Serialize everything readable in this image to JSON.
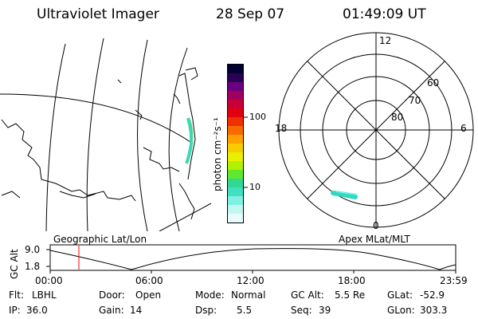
{
  "header": {
    "instrument": "Ultraviolet Imager",
    "date": "28 Sep 07",
    "time": "01:49:09 UT"
  },
  "colorbar": {
    "unit_label": "photon cm⁻²s⁻¹",
    "ticks": [
      {
        "value": 100,
        "label": "100"
      },
      {
        "value": 10,
        "label": "10"
      }
    ],
    "colors": [
      "#000033",
      "#2a0055",
      "#6a0080",
      "#9e0060",
      "#c8003a",
      "#e00010",
      "#f03000",
      "#f86a00",
      "#ffa000",
      "#f8cc00",
      "#e8f000",
      "#b0f000",
      "#60e830",
      "#30d890",
      "#40e0c0",
      "#80f0e0",
      "#c0f8f0",
      "#e8fcfc"
    ]
  },
  "geo_map": {
    "label": "Geographic Lat/Lon"
  },
  "polar_plot": {
    "label": "Apex MLat/MLT",
    "mlt_labels": [
      "12",
      "18",
      "6",
      "0"
    ],
    "lat_labels": [
      "60",
      "70",
      "80"
    ]
  },
  "timeline": {
    "axis_label": "GC Alt",
    "y_ticks": [
      "9.0",
      "1.8"
    ],
    "x_ticks": [
      "00:00",
      "06:00",
      "12:00",
      "18:00",
      "23:59"
    ]
  },
  "footer": [
    {
      "label": "Flt:",
      "value": "LBHL"
    },
    {
      "label": "Door:",
      "value": "Open"
    },
    {
      "label": "Mode:",
      "value": "Normal"
    },
    {
      "label": "GC Alt:",
      "value": "5.5 Re"
    },
    {
      "label": "GLat:",
      "value": "-52.9"
    },
    {
      "label": "IP:",
      "value": "36.0"
    },
    {
      "label": "Gain:",
      "value": "14"
    },
    {
      "label": "Dsp:",
      "value": "5.5"
    },
    {
      "label": "Seq:",
      "value": "39"
    },
    {
      "label": "GLon:",
      "value": "303.3"
    }
  ]
}
